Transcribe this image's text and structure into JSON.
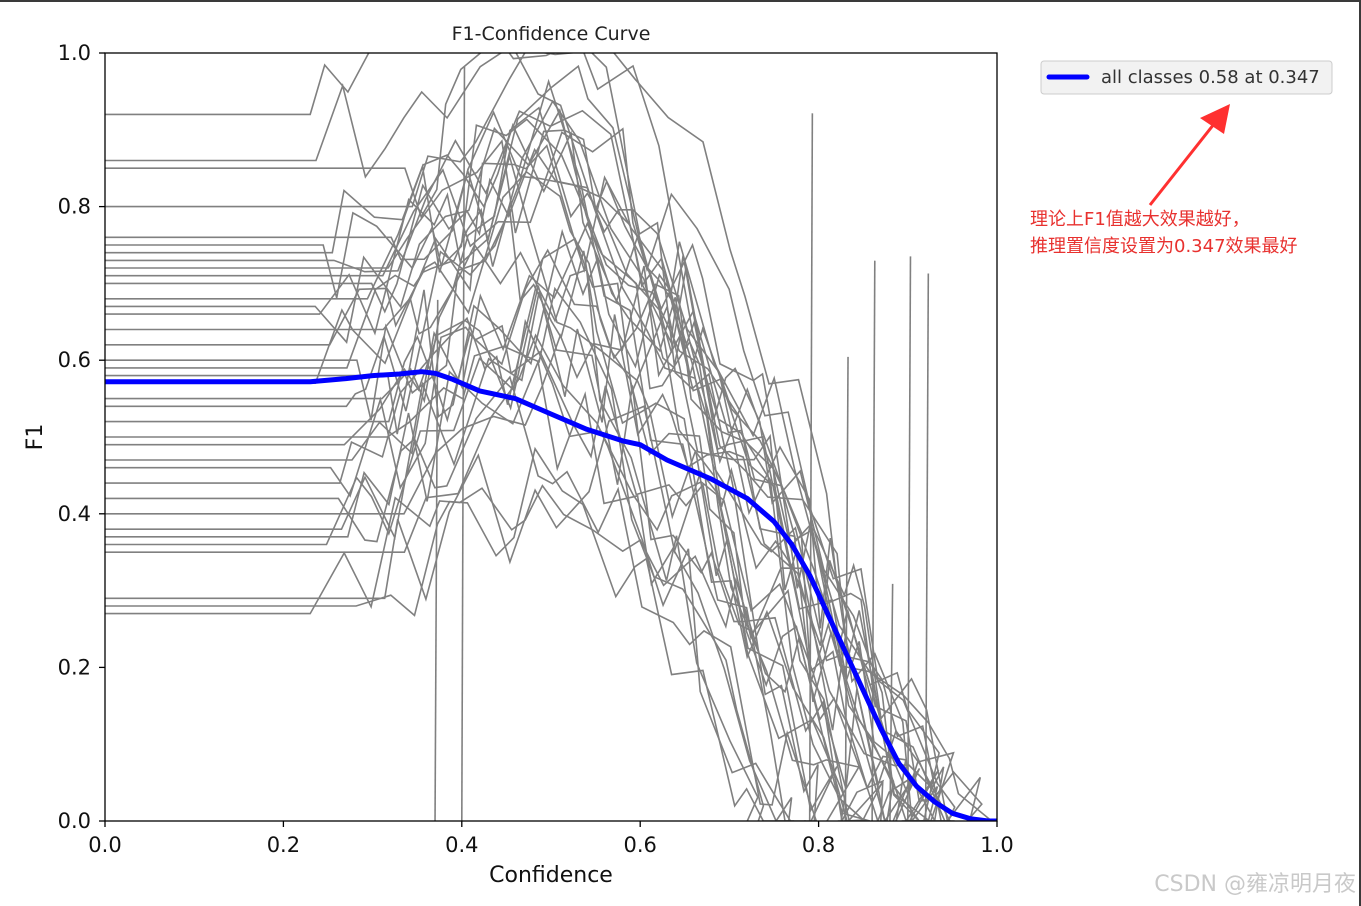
{
  "chart_data": {
    "type": "line",
    "title": "F1-Confidence Curve",
    "xlabel": "Confidence",
    "ylabel": "F1",
    "xlim": [
      0.0,
      1.0
    ],
    "ylim": [
      0.0,
      1.0
    ],
    "xticks": [
      "0.0",
      "0.2",
      "0.4",
      "0.6",
      "0.8",
      "1.0"
    ],
    "yticks": [
      "0.0",
      "0.2",
      "0.4",
      "0.6",
      "0.8",
      "1.0"
    ],
    "grid": false,
    "legend_position": "outside-top-right",
    "per_class_color": "#808080",
    "series": [
      {
        "name": "all classes 0.58 at 0.347",
        "color": "#0000ff",
        "x": [
          0.0,
          0.23,
          0.27,
          0.3,
          0.33,
          0.355,
          0.37,
          0.39,
          0.42,
          0.46,
          0.5,
          0.54,
          0.58,
          0.6,
          0.63,
          0.68,
          0.72,
          0.75,
          0.77,
          0.79,
          0.81,
          0.83,
          0.85,
          0.87,
          0.89,
          0.91,
          0.93,
          0.95,
          0.97,
          0.99,
          1.0
        ],
        "y": [
          0.572,
          0.572,
          0.576,
          0.58,
          0.582,
          0.585,
          0.583,
          0.575,
          0.56,
          0.55,
          0.53,
          0.51,
          0.495,
          0.49,
          0.47,
          0.445,
          0.42,
          0.39,
          0.36,
          0.32,
          0.27,
          0.22,
          0.17,
          0.12,
          0.075,
          0.045,
          0.025,
          0.01,
          0.003,
          0.0,
          0.0
        ]
      }
    ]
  },
  "annotation": {
    "line1": "理论上F1值越大效果越好，",
    "line2": "推理置信度设置为0.347效果最好"
  },
  "watermark": "CSDN @雍凉明月夜"
}
